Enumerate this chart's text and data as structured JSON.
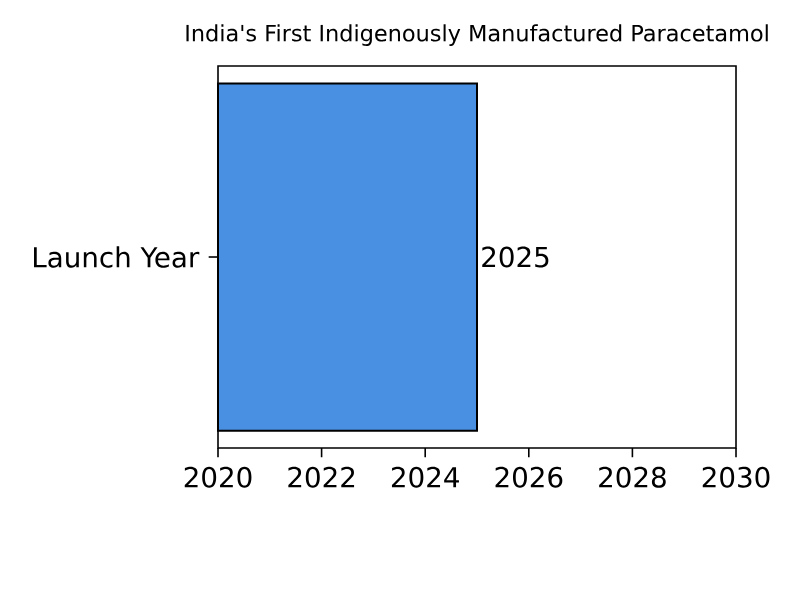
{
  "chart_data": {
    "type": "bar",
    "orientation": "horizontal",
    "title": "India's First Indigenously Manufactured Paracetamol",
    "categories": [
      "Launch Year"
    ],
    "values": [
      2025
    ],
    "color": "#4a90e2",
    "xlim": [
      2020,
      2030
    ],
    "xticks": [
      2020,
      2022,
      2024,
      2026,
      2028,
      2030
    ],
    "data_labels": true
  }
}
